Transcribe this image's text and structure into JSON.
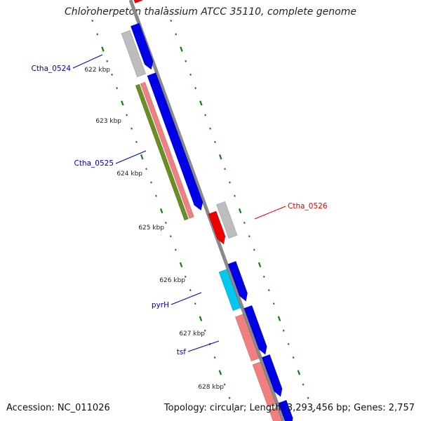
{
  "title": "Chloroherpeton thalassium ATCC 35110, complete genome",
  "footer": {
    "accession": "Accession: NC_011026",
    "summary": "Topology: circular; Length: 3,293,456 bp; Genes: 2,757"
  },
  "colors": {
    "backbone": "#8a8a8a",
    "ruler": "#1a7a1a",
    "cds_blue": "#0000e6",
    "cds_grey": "#bdbdbd",
    "cds_red": "#ee0000",
    "cds_salmon": "#f08080",
    "cds_olive": "#6b8e23",
    "cds_cyan": "#00c8f0",
    "label_blue": "#0000aa",
    "label_red": "#dd0000"
  },
  "ticks": [
    "622 kbp",
    "623 kbp",
    "624 kbp",
    "625 kbp",
    "626 kbp",
    "627 kbp",
    "628 kbp"
  ],
  "labels": [
    {
      "text": "Ctha_0524",
      "color": "blue"
    },
    {
      "text": "Ctha_0525",
      "color": "blue"
    },
    {
      "text": "Ctha_0526",
      "color": "red"
    },
    {
      "text": "pyrH",
      "color": "blue"
    },
    {
      "text": "tsf",
      "color": "blue"
    }
  ]
}
